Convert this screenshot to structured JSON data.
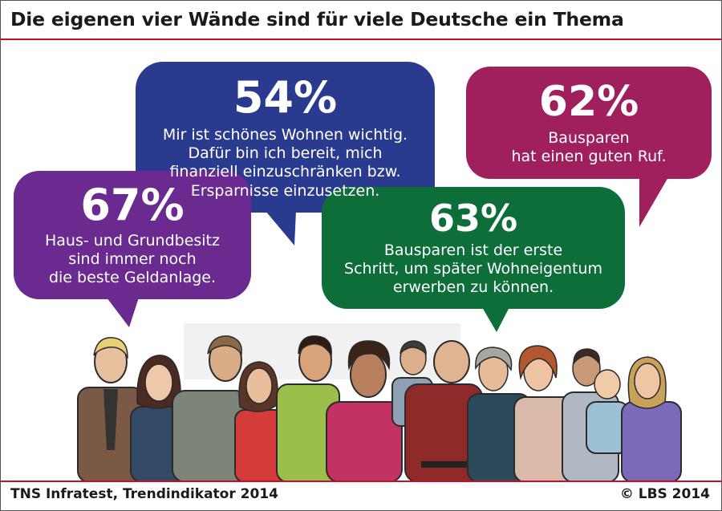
{
  "title": "Die eigenen vier Wände sind für viele Deutsche ein Thema",
  "colors": {
    "blue": "#2a3b8f",
    "violet": "#6a2a8f",
    "magenta": "#a0205e",
    "green": "#0d6e3a",
    "rule": "#c8102e"
  },
  "bubbles": [
    {
      "percent": "54%",
      "lines": [
        "Mir ist schönes Wohnen wichtig.",
        "Dafür bin ich bereit, mich",
        "finanziell einzuschränken bzw.",
        "Ersparnisse einzusetzen."
      ]
    },
    {
      "percent": "62%",
      "lines": [
        "Bausparen",
        "hat einen guten Ruf."
      ]
    },
    {
      "percent": "67%",
      "lines": [
        "Haus- und Grundbesitz",
        "sind immer noch",
        "die beste Geldanlage."
      ]
    },
    {
      "percent": "63%",
      "lines": [
        "Bausparen ist der erste",
        "Schritt, um später Wohneigentum",
        "erwerben zu können."
      ]
    }
  ],
  "illustration": "group-of-people-illustration",
  "footer": {
    "source": "TNS Infratest, Trendindikator 2014",
    "copyright": "© LBS 2014"
  }
}
